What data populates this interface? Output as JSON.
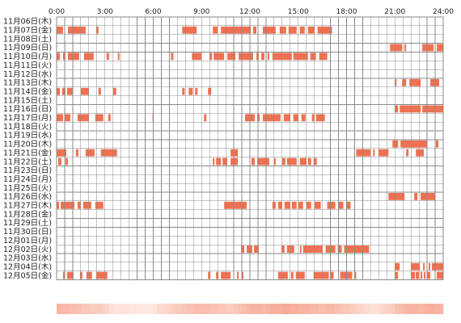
{
  "chart_data": {
    "type": "heatmap",
    "x_axis_ticks": [
      "0:00",
      "3:00",
      "6:00",
      "9:00",
      "12:00",
      "15:00",
      "18:00",
      "21:00",
      "24:00"
    ],
    "x_unit": "hour",
    "x_range": [
      0,
      24
    ],
    "grid": true,
    "colors": {
      "activity": "#f07050",
      "grid": "#8a8a8a",
      "heat_low": "#fde8e0",
      "heat_high": "#f48a70"
    },
    "days": [
      {
        "label": "11月06日(木)",
        "segments": []
      },
      {
        "label": "11月07日(金)",
        "segments": [
          [
            0.0,
            0.4
          ],
          [
            0.7,
            1.8
          ],
          [
            2.45,
            2.6
          ],
          [
            7.8,
            8.7
          ],
          [
            9.7,
            10.0
          ],
          [
            10.2,
            12.05
          ],
          [
            12.2,
            12.4
          ],
          [
            12.8,
            13.6
          ],
          [
            13.85,
            14.1
          ],
          [
            14.1,
            14.25
          ],
          [
            14.4,
            14.9
          ],
          [
            15.1,
            15.4
          ],
          [
            15.6,
            16.0
          ],
          [
            16.2,
            17.1
          ]
        ]
      },
      {
        "label": "11月08日(土)",
        "segments": []
      },
      {
        "label": "11月09日(日)",
        "segments": [
          [
            20.7,
            21.45
          ],
          [
            21.6,
            21.7
          ],
          [
            22.7,
            23.4
          ],
          [
            23.6,
            24.0
          ]
        ]
      },
      {
        "label": "11月10日(月)",
        "segments": [
          [
            0.0,
            0.2
          ],
          [
            0.4,
            0.55
          ],
          [
            0.7,
            1.4
          ],
          [
            1.7,
            2.3
          ],
          [
            3.1,
            3.25
          ],
          [
            3.8,
            3.9
          ],
          [
            7.1,
            7.25
          ],
          [
            8.4,
            9.0
          ],
          [
            9.5,
            9.65
          ],
          [
            9.75,
            10.4
          ],
          [
            10.6,
            11.1
          ],
          [
            11.3,
            12.2
          ],
          [
            12.4,
            12.55
          ],
          [
            12.7,
            12.9
          ],
          [
            13.1,
            13.2
          ],
          [
            13.4,
            14.6
          ],
          [
            14.7,
            15.6
          ],
          [
            15.75,
            16.1
          ],
          [
            16.3,
            16.8
          ]
        ]
      },
      {
        "label": "11月11日(火)",
        "segments": []
      },
      {
        "label": "11月12日(水)",
        "segments": []
      },
      {
        "label": "11月13日(木)",
        "segments": [
          [
            21.0,
            21.1
          ],
          [
            21.45,
            21.7
          ],
          [
            21.9,
            22.6
          ],
          [
            23.2,
            23.75
          ]
        ]
      },
      {
        "label": "11月14日(金)",
        "segments": [
          [
            0.0,
            0.2
          ],
          [
            0.35,
            0.55
          ],
          [
            0.65,
            1.0
          ],
          [
            1.5,
            2.0
          ],
          [
            2.6,
            2.75
          ],
          [
            3.5,
            3.7
          ],
          [
            7.8,
            7.95
          ],
          [
            8.2,
            8.45
          ],
          [
            8.6,
            8.75
          ],
          [
            9.4,
            9.6
          ]
        ]
      },
      {
        "label": "11月15日(土)",
        "segments": []
      },
      {
        "label": "11月16日(日)",
        "segments": [
          [
            21.0,
            21.2
          ],
          [
            21.3,
            22.6
          ],
          [
            22.7,
            24.0
          ]
        ]
      },
      {
        "label": "11月17日(月)",
        "segments": [
          [
            0.0,
            0.4
          ],
          [
            0.5,
            0.85
          ],
          [
            1.3,
            2.0
          ],
          [
            2.4,
            2.9
          ],
          [
            3.2,
            3.35
          ],
          [
            5.95,
            6.0
          ],
          [
            9.15,
            9.3
          ],
          [
            11.7,
            12.3
          ],
          [
            12.45,
            12.6
          ],
          [
            12.8,
            13.9
          ],
          [
            14.1,
            14.5
          ],
          [
            14.7,
            15.0
          ],
          [
            15.2,
            15.45
          ],
          [
            15.85,
            16.0
          ],
          [
            16.1,
            16.65
          ]
        ]
      },
      {
        "label": "11月18日(火)",
        "segments": []
      },
      {
        "label": "11月19日(水)",
        "segments": []
      },
      {
        "label": "11月20日(木)",
        "segments": [
          [
            20.85,
            21.2
          ],
          [
            21.35,
            23.0
          ],
          [
            23.55,
            23.7
          ]
        ]
      },
      {
        "label": "11月21日(金)",
        "segments": [
          [
            0.0,
            0.6
          ],
          [
            1.2,
            1.35
          ],
          [
            1.8,
            2.35
          ],
          [
            2.75,
            3.75
          ],
          [
            10.8,
            11.25
          ],
          [
            18.6,
            19.5
          ],
          [
            19.65,
            19.75
          ],
          [
            20.0,
            20.6
          ],
          [
            21.7,
            21.85
          ],
          [
            22.3,
            22.8
          ]
        ]
      },
      {
        "label": "11月22日(土)",
        "segments": [
          [
            0.1,
            0.3
          ],
          [
            0.55,
            0.7
          ],
          [
            9.7,
            9.8
          ],
          [
            9.9,
            10.2
          ],
          [
            10.3,
            10.6
          ],
          [
            10.8,
            11.25
          ],
          [
            12.1,
            12.3
          ],
          [
            12.45,
            13.2
          ],
          [
            13.5,
            13.6
          ],
          [
            14.0,
            14.2
          ],
          [
            14.3,
            14.9
          ],
          [
            15.1,
            15.5
          ],
          [
            15.6,
            15.8
          ],
          [
            15.95,
            16.15
          ]
        ]
      },
      {
        "label": "11月23日(日)",
        "segments": []
      },
      {
        "label": "11月24日(月)",
        "segments": []
      },
      {
        "label": "11月25日(火)",
        "segments": []
      },
      {
        "label": "11月26日(水)",
        "segments": [
          [
            20.6,
            21.6
          ],
          [
            22.2,
            22.4
          ],
          [
            22.6,
            23.5
          ]
        ]
      },
      {
        "label": "11月27日(木)",
        "segments": [
          [
            0.0,
            0.15
          ],
          [
            0.25,
            1.1
          ],
          [
            1.3,
            1.5
          ],
          [
            1.65,
            2.15
          ],
          [
            2.4,
            2.9
          ],
          [
            10.4,
            11.8
          ],
          [
            13.4,
            13.6
          ],
          [
            13.75,
            14.0
          ],
          [
            14.15,
            14.5
          ],
          [
            14.6,
            14.9
          ],
          [
            15.0,
            15.3
          ],
          [
            15.5,
            15.8
          ],
          [
            16.0,
            16.4
          ],
          [
            16.8,
            17.3
          ],
          [
            17.5,
            17.8
          ],
          [
            18.0,
            18.25
          ]
        ]
      },
      {
        "label": "11月28日(金)",
        "segments": []
      },
      {
        "label": "11月29日(土)",
        "segments": []
      },
      {
        "label": "11月30日(日)",
        "segments": []
      },
      {
        "label": "12月01日(月)",
        "segments": []
      },
      {
        "label": "12月02日(火)",
        "segments": [
          [
            11.45,
            11.65
          ],
          [
            11.8,
            12.15
          ],
          [
            12.25,
            12.55
          ],
          [
            13.95,
            14.15
          ],
          [
            14.3,
            14.75
          ],
          [
            15.1,
            15.2
          ],
          [
            15.3,
            16.5
          ],
          [
            16.7,
            17.3
          ],
          [
            17.45,
            17.7
          ],
          [
            17.85,
            19.4
          ]
        ]
      },
      {
        "label": "12月03日(水)",
        "segments": []
      },
      {
        "label": "12月04日(木)",
        "segments": [
          [
            21.0,
            21.3
          ],
          [
            22.0,
            22.55
          ],
          [
            22.75,
            22.85
          ],
          [
            23.1,
            23.2
          ],
          [
            23.3,
            24.0
          ]
        ]
      },
      {
        "label": "12月05日(金)",
        "segments": [
          [
            0.4,
            0.5
          ],
          [
            0.65,
            1.05
          ],
          [
            1.45,
            1.6
          ],
          [
            1.85,
            2.2
          ],
          [
            2.45,
            3.15
          ],
          [
            9.4,
            9.55
          ],
          [
            9.9,
            10.05
          ],
          [
            10.2,
            10.8
          ],
          [
            11.2,
            11.3
          ],
          [
            11.5,
            11.6
          ],
          [
            13.75,
            14.35
          ],
          [
            14.55,
            14.7
          ],
          [
            14.85,
            15.4
          ],
          [
            15.95,
            16.9
          ],
          [
            17.0,
            17.2
          ],
          [
            17.6,
            18.35
          ],
          [
            18.5,
            18.6
          ],
          [
            21.0,
            21.2
          ],
          [
            22.0,
            22.25
          ],
          [
            22.3,
            22.5
          ],
          [
            22.6,
            22.7
          ],
          [
            22.8,
            22.9
          ],
          [
            23.0,
            23.2
          ],
          [
            23.6,
            24.0
          ]
        ]
      }
    ],
    "summary_heat": [
      0.55,
      0.5,
      0.5,
      0.45,
      0.45,
      0.4,
      0.35,
      0.35,
      0.3,
      0.3,
      0.3,
      0.25,
      0.2,
      0.1,
      0.05,
      0.05,
      0.05,
      0.05,
      0.02,
      0.02,
      0.0,
      0.0,
      0.0,
      0.0,
      0.05,
      0.15,
      0.15,
      0.2,
      0.25,
      0.3,
      0.3,
      0.35,
      0.4,
      0.4,
      0.45,
      0.45,
      0.45,
      0.45,
      0.4,
      0.4,
      0.35,
      0.35,
      0.3,
      0.3,
      0.35,
      0.4,
      0.45,
      0.5,
      0.55,
      0.55,
      0.55,
      0.5,
      0.55,
      0.6,
      0.6,
      0.6,
      0.65,
      0.65,
      0.6,
      0.6,
      0.55,
      0.55,
      0.55,
      0.5,
      0.5,
      0.45,
      0.45,
      0.5,
      0.5,
      0.45,
      0.4,
      0.35,
      0.35,
      0.3,
      0.25,
      0.2,
      0.15,
      0.12,
      0.1,
      0.1,
      0.15,
      0.2,
      0.25,
      0.3,
      0.4,
      0.45,
      0.5,
      0.55,
      0.55,
      0.55,
      0.5,
      0.55,
      0.6,
      0.6,
      0.55,
      0.55
    ]
  }
}
